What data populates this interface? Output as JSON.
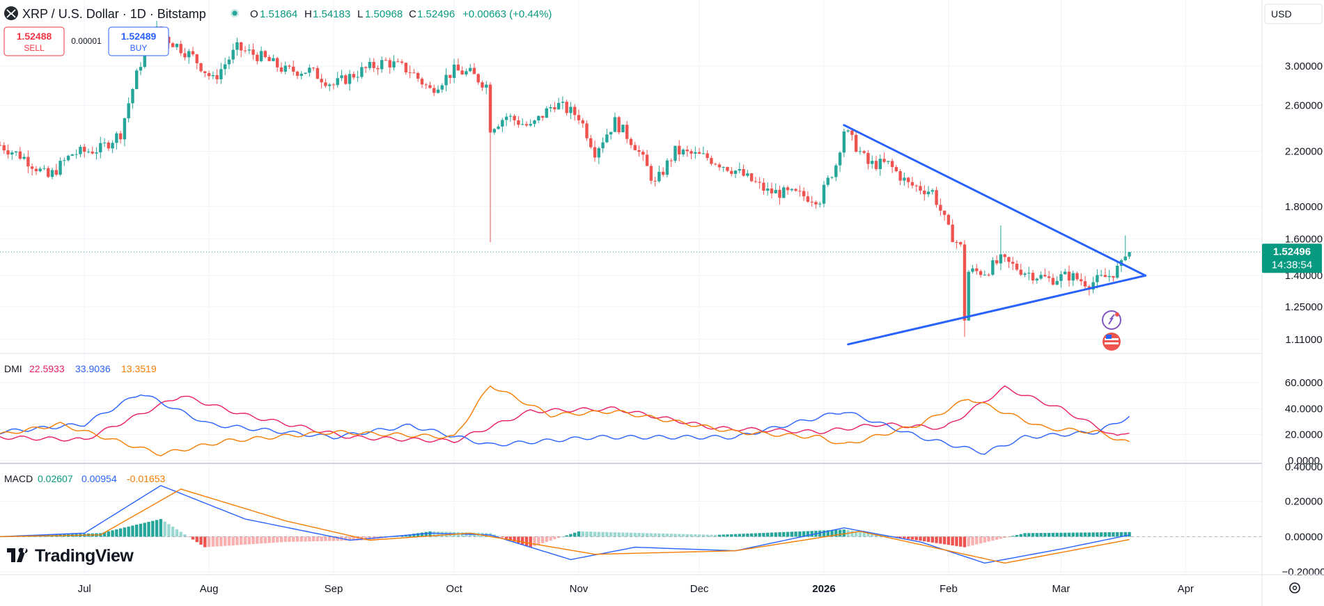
{
  "header": {
    "symbol_title": "XRP / U.S. Dollar · 1D · Bitstamp",
    "ohlc": [
      {
        "label": "O",
        "value": "1.51864"
      },
      {
        "label": "H",
        "value": "1.54183"
      },
      {
        "label": "L",
        "value": "1.50968"
      },
      {
        "label": "C",
        "value": "1.52496"
      }
    ],
    "change": "+0.00663 (+0.44%)"
  },
  "trade": {
    "sell_price": "1.52488",
    "sell_label": "SELL",
    "spread": "0.00001",
    "buy_price": "1.52489",
    "buy_label": "BUY"
  },
  "currency_select": "USD",
  "price_tag": {
    "price": "1.52496",
    "countdown": "14:38:54"
  },
  "brand": "TradingView",
  "colors": {
    "up": "#26a69a",
    "down": "#ef5350",
    "trendline": "#2962ff",
    "accent": "#2962ff"
  },
  "indicators": {
    "dmi": {
      "name": "DMI",
      "adx": "22.5933",
      "plus_di": "33.9036",
      "minus_di": "13.3519"
    },
    "macd": {
      "name": "MACD",
      "hist": "0.02607",
      "macd": "0.00954",
      "signal": "-0.01653"
    }
  },
  "chart_data": [
    {
      "type": "candlestick",
      "title": "XRP / U.S. Dollar · 1D · Bitstamp",
      "scale": "log",
      "ylim": [
        1.06,
        3.5
      ],
      "y_ticks": [
        "3.00000",
        "2.60000",
        "2.20000",
        "1.80000",
        "1.60000",
        "1.40000",
        "1.25000",
        "1.11000"
      ],
      "x_ticks": [
        "Jul",
        "Aug",
        "Sep",
        "Oct",
        "Nov",
        "Dec",
        "2026",
        "Feb",
        "Mar",
        "Apr"
      ],
      "x_range": [
        "2025-06-10",
        "2026-04-20"
      ],
      "last_price": 1.52496,
      "grid": true,
      "close_anchors": [
        [
          "2025-06-10",
          2.25
        ],
        [
          "2025-06-16",
          2.15
        ],
        [
          "2025-06-22",
          2.0
        ],
        [
          "2025-06-28",
          2.18
        ],
        [
          "2025-07-05",
          2.22
        ],
        [
          "2025-07-10",
          2.35
        ],
        [
          "2025-07-14",
          2.9
        ],
        [
          "2025-07-18",
          3.45
        ],
        [
          "2025-07-22",
          3.3
        ],
        [
          "2025-07-28",
          3.1
        ],
        [
          "2025-08-02",
          2.85
        ],
        [
          "2025-08-08",
          3.2
        ],
        [
          "2025-08-14",
          3.1
        ],
        [
          "2025-08-20",
          2.95
        ],
        [
          "2025-08-26",
          2.95
        ],
        [
          "2025-09-01",
          2.8
        ],
        [
          "2025-09-08",
          2.95
        ],
        [
          "2025-09-14",
          3.05
        ],
        [
          "2025-09-20",
          2.95
        ],
        [
          "2025-09-25",
          2.75
        ],
        [
          "2025-10-01",
          2.95
        ],
        [
          "2025-10-05",
          2.92
        ],
        [
          "2025-10-09",
          2.8
        ],
        [
          "2025-10-10",
          2.4
        ],
        [
          "2025-10-14",
          2.5
        ],
        [
          "2025-10-20",
          2.4
        ],
        [
          "2025-10-26",
          2.62
        ],
        [
          "2025-11-01",
          2.5
        ],
        [
          "2025-11-05",
          2.2
        ],
        [
          "2025-11-10",
          2.45
        ],
        [
          "2025-11-15",
          2.25
        ],
        [
          "2025-11-20",
          1.95
        ],
        [
          "2025-11-25",
          2.2
        ],
        [
          "2025-12-03",
          2.15
        ],
        [
          "2025-12-10",
          2.05
        ],
        [
          "2025-12-18",
          1.9
        ],
        [
          "2025-12-25",
          1.88
        ],
        [
          "2025-12-31",
          1.85
        ],
        [
          "2026-01-04",
          2.1
        ],
        [
          "2026-01-06",
          2.38
        ],
        [
          "2026-01-12",
          2.1
        ],
        [
          "2026-01-17",
          2.1
        ],
        [
          "2026-01-22",
          1.95
        ],
        [
          "2026-01-28",
          1.9
        ],
        [
          "2026-02-01",
          1.65
        ],
        [
          "2026-02-04",
          1.55
        ],
        [
          "2026-02-05",
          1.2
        ],
        [
          "2026-02-06",
          1.42
        ],
        [
          "2026-02-10",
          1.42
        ],
        [
          "2026-02-14",
          1.48
        ],
        [
          "2026-02-20",
          1.42
        ],
        [
          "2026-02-26",
          1.38
        ],
        [
          "2026-03-03",
          1.4
        ],
        [
          "2026-03-08",
          1.36
        ],
        [
          "2026-03-13",
          1.4
        ],
        [
          "2026-03-16",
          1.45
        ],
        [
          "2026-03-17",
          1.53
        ],
        [
          "2026-03-18",
          1.525
        ]
      ],
      "wick_extremes": [
        {
          "date": "2025-10-10",
          "low": 1.58
        },
        {
          "date": "2026-02-05",
          "low": 1.12
        },
        {
          "date": "2026-02-14",
          "high": 1.68
        },
        {
          "date": "2026-03-17",
          "high": 1.62
        }
      ],
      "annotations": [
        {
          "type": "trendline",
          "from": [
            "2026-01-06",
            2.42
          ],
          "to": [
            "2026-03-22",
            1.4
          ]
        },
        {
          "type": "trendline",
          "from": [
            "2026-01-07",
            1.09
          ],
          "to": [
            "2026-03-22",
            1.4
          ]
        }
      ]
    },
    {
      "type": "line",
      "title": "DMI",
      "ylim": [
        0,
        60
      ],
      "y_ticks": [
        "60.0000",
        "40.0000",
        "20.0000",
        "0.0000"
      ],
      "series": [
        {
          "name": "22.5933",
          "color": "#e91e63",
          "points": [
            [
              "2025-06-10",
              18
            ],
            [
              "2025-07-01",
              16
            ],
            [
              "2025-07-25",
              50
            ],
            [
              "2025-08-10",
              35
            ],
            [
              "2025-09-05",
              18
            ],
            [
              "2025-10-01",
              15
            ],
            [
              "2025-10-20",
              38
            ],
            [
              "2025-11-10",
              40
            ],
            [
              "2025-12-05",
              25
            ],
            [
              "2025-12-31",
              22
            ],
            [
              "2026-01-15",
              28
            ],
            [
              "2026-01-31",
              25
            ],
            [
              "2026-02-15",
              56
            ],
            [
              "2026-03-01",
              40
            ],
            [
              "2026-03-15",
              18
            ],
            [
              "2026-03-18",
              22.6
            ]
          ]
        },
        {
          "name": "33.9036",
          "color": "#2962ff",
          "points": [
            [
              "2025-06-10",
              22
            ],
            [
              "2025-07-01",
              28
            ],
            [
              "2025-07-15",
              52
            ],
            [
              "2025-08-01",
              28
            ],
            [
              "2025-09-01",
              18
            ],
            [
              "2025-09-20",
              27
            ],
            [
              "2025-10-10",
              12
            ],
            [
              "2025-11-05",
              18
            ],
            [
              "2025-12-10",
              18
            ],
            [
              "2026-01-06",
              38
            ],
            [
              "2026-01-25",
              18
            ],
            [
              "2026-02-10",
              6
            ],
            [
              "2026-02-20",
              18
            ],
            [
              "2026-03-10",
              22
            ],
            [
              "2026-03-18",
              33.9
            ]
          ]
        },
        {
          "name": "13.3519",
          "color": "#f57c00",
          "points": [
            [
              "2025-06-10",
              20
            ],
            [
              "2025-06-25",
              28
            ],
            [
              "2025-07-20",
              5
            ],
            [
              "2025-08-05",
              15
            ],
            [
              "2025-09-01",
              22
            ],
            [
              "2025-10-01",
              18
            ],
            [
              "2025-10-10",
              58
            ],
            [
              "2025-10-25",
              35
            ],
            [
              "2025-11-10",
              38
            ],
            [
              "2025-12-10",
              22
            ],
            [
              "2025-12-31",
              18
            ],
            [
              "2026-01-06",
              12
            ],
            [
              "2026-01-25",
              28
            ],
            [
              "2026-02-06",
              48
            ],
            [
              "2026-02-25",
              25
            ],
            [
              "2026-03-10",
              22
            ],
            [
              "2026-03-18",
              13.4
            ]
          ]
        }
      ]
    },
    {
      "type": "macd",
      "title": "MACD",
      "ylim": [
        -0.2,
        0.4
      ],
      "y_ticks": [
        "0.40000",
        "0.20000",
        "0.00000",
        "−0.20000"
      ],
      "series": [
        {
          "name": "0.02607",
          "role": "histogram",
          "up_color": "#26a69a",
          "down_color": "#ef5350",
          "points": [
            [
              "2025-06-10",
              0
            ],
            [
              "2025-07-05",
              0.02
            ],
            [
              "2025-07-20",
              0.1
            ],
            [
              "2025-07-31",
              -0.06
            ],
            [
              "2025-08-20",
              -0.03
            ],
            [
              "2025-09-10",
              -0.02
            ],
            [
              "2025-09-25",
              0.03
            ],
            [
              "2025-10-10",
              0.02
            ],
            [
              "2025-10-20",
              -0.06
            ],
            [
              "2025-11-01",
              0.03
            ],
            [
              "2025-12-05",
              0.01
            ],
            [
              "2026-01-06",
              0.04
            ],
            [
              "2026-02-05",
              -0.06
            ],
            [
              "2026-02-20",
              0.02
            ],
            [
              "2026-03-18",
              0.026
            ]
          ]
        },
        {
          "name": "0.00954",
          "role": "macd",
          "color": "#2962ff",
          "points": [
            [
              "2025-06-10",
              0
            ],
            [
              "2025-07-01",
              0.02
            ],
            [
              "2025-07-20",
              0.29
            ],
            [
              "2025-08-10",
              0.1
            ],
            [
              "2025-09-05",
              -0.02
            ],
            [
              "2025-09-25",
              0.02
            ],
            [
              "2025-10-10",
              0.01
            ],
            [
              "2025-10-30",
              -0.13
            ],
            [
              "2025-11-15",
              -0.06
            ],
            [
              "2025-12-10",
              -0.08
            ],
            [
              "2026-01-06",
              0.05
            ],
            [
              "2026-01-25",
              -0.03
            ],
            [
              "2026-02-10",
              -0.15
            ],
            [
              "2026-03-01",
              -0.07
            ],
            [
              "2026-03-18",
              0.0095
            ]
          ]
        },
        {
          "name": "-0.01653",
          "role": "signal",
          "color": "#f57c00",
          "points": [
            [
              "2025-06-10",
              0
            ],
            [
              "2025-07-05",
              0.01
            ],
            [
              "2025-07-25",
              0.27
            ],
            [
              "2025-08-20",
              0.09
            ],
            [
              "2025-09-10",
              -0.02
            ],
            [
              "2025-10-05",
              0.02
            ],
            [
              "2025-11-05",
              -0.1
            ],
            [
              "2025-12-10",
              -0.08
            ],
            [
              "2026-01-10",
              0.03
            ],
            [
              "2026-02-15",
              -0.15
            ],
            [
              "2026-03-18",
              -0.0165
            ]
          ]
        }
      ]
    }
  ]
}
